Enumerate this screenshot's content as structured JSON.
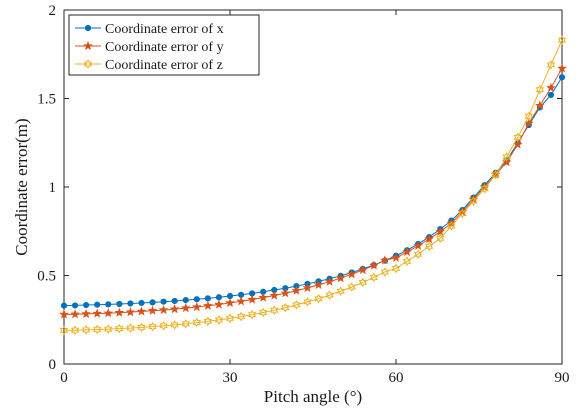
{
  "chart_data": {
    "type": "line",
    "title": "",
    "xlabel": "Pitch angle (°)",
    "ylabel": "Coordinate error(m)",
    "xlim": [
      0,
      90
    ],
    "ylim": [
      0,
      2
    ],
    "xticks": [
      "0",
      "30",
      "60",
      "90"
    ],
    "yticks": [
      "0",
      "0.5",
      "1",
      "1.5",
      "2"
    ],
    "grid": false,
    "legend_position": "top-left",
    "x": [
      0,
      2,
      4,
      6,
      8,
      10,
      12,
      14,
      16,
      18,
      20,
      22,
      24,
      26,
      28,
      30,
      32,
      34,
      36,
      38,
      40,
      42,
      44,
      46,
      48,
      50,
      52,
      54,
      56,
      58,
      60,
      62,
      64,
      66,
      68,
      70,
      72,
      74,
      76,
      78,
      80,
      82,
      84,
      86,
      88,
      90
    ],
    "series": [
      {
        "name": "Coordinate error of  x",
        "color": "#0072BD",
        "marker": "dot",
        "values": [
          0.33,
          0.331,
          0.333,
          0.335,
          0.337,
          0.339,
          0.342,
          0.345,
          0.348,
          0.352,
          0.356,
          0.361,
          0.366,
          0.371,
          0.377,
          0.384,
          0.391,
          0.399,
          0.408,
          0.418,
          0.428,
          0.44,
          0.453,
          0.467,
          0.482,
          0.498,
          0.517,
          0.537,
          0.559,
          0.584,
          0.612,
          0.643,
          0.678,
          0.717,
          0.762,
          0.81,
          0.87,
          0.94,
          1.01,
          1.08,
          1.15,
          1.25,
          1.35,
          1.45,
          1.52,
          1.62
        ]
      },
      {
        "name": "Coordinate error of  y",
        "color": "#D95319",
        "marker": "star",
        "values": [
          0.28,
          0.281,
          0.283,
          0.285,
          0.287,
          0.29,
          0.293,
          0.297,
          0.301,
          0.305,
          0.31,
          0.316,
          0.322,
          0.329,
          0.336,
          0.345,
          0.354,
          0.364,
          0.375,
          0.387,
          0.4,
          0.414,
          0.43,
          0.447,
          0.465,
          0.485,
          0.507,
          0.531,
          0.557,
          0.586,
          0.6,
          0.633,
          0.668,
          0.706,
          0.748,
          0.795,
          0.86,
          0.93,
          1.0,
          1.07,
          1.14,
          1.24,
          1.36,
          1.46,
          1.56,
          1.67
        ]
      },
      {
        "name": "Coordinate error of  z",
        "color": "#EDB120",
        "marker": "hexagram",
        "values": [
          0.19,
          0.191,
          0.193,
          0.195,
          0.197,
          0.2,
          0.203,
          0.207,
          0.211,
          0.216,
          0.221,
          0.227,
          0.234,
          0.241,
          0.249,
          0.258,
          0.268,
          0.279,
          0.291,
          0.304,
          0.318,
          0.334,
          0.351,
          0.369,
          0.389,
          0.411,
          0.435,
          0.461,
          0.489,
          0.52,
          0.54,
          0.58,
          0.62,
          0.665,
          0.71,
          0.78,
          0.85,
          0.92,
          0.99,
          1.07,
          1.17,
          1.28,
          1.4,
          1.55,
          1.69,
          1.83
        ]
      }
    ]
  }
}
